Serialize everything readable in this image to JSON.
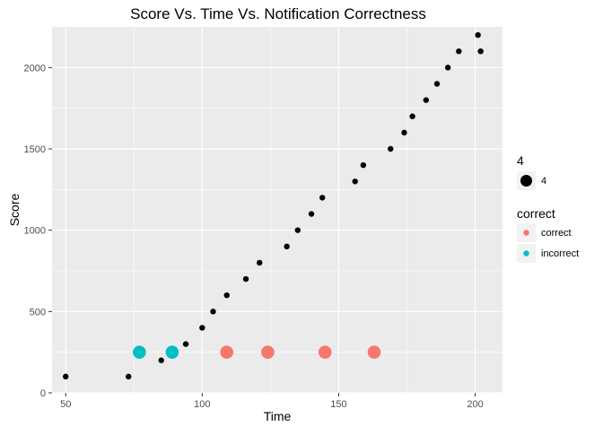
{
  "chart_data": {
    "type": "scatter",
    "title": "Score Vs. Time Vs. Notification Correctness",
    "xlabel": "Time",
    "ylabel": "Score",
    "xlim": [
      45,
      210
    ],
    "ylim": [
      0,
      2250
    ],
    "xticks": [
      50,
      100,
      150,
      200
    ],
    "yticks": [
      0,
      500,
      1000,
      1500,
      2000
    ],
    "grid": true,
    "legend_placement": "right",
    "background": "#EBEBEB",
    "gridline_color": "#FFFFFF",
    "series": [
      {
        "color": "#000000",
        "size": "small",
        "x": [
          50,
          73,
          85,
          94,
          100,
          104,
          109,
          116,
          121,
          131,
          135,
          140,
          144,
          156,
          159,
          169,
          174,
          177,
          182,
          186,
          190,
          194,
          201,
          202
        ],
        "y": [
          100,
          100,
          200,
          300,
          400,
          500,
          600,
          700,
          800,
          900,
          1000,
          1100,
          1200,
          1300,
          1400,
          1500,
          1600,
          1700,
          1800,
          1900,
          2000,
          2100,
          2200,
          2100
        ]
      },
      {
        "name": "correct",
        "color": "#F8766D",
        "size": "4",
        "x": [
          109,
          124,
          145,
          163
        ],
        "y": [
          250,
          250,
          250,
          250
        ]
      },
      {
        "name": "incorrect",
        "color": "#00BFC4",
        "size": "4",
        "x": [
          77,
          89
        ],
        "y": [
          250,
          250
        ]
      }
    ],
    "legends": [
      {
        "title": "4",
        "entries": [
          {
            "label": "4",
            "color": "#000000",
            "size": "large"
          }
        ]
      },
      {
        "title": "correct",
        "entries": [
          {
            "label": "correct",
            "color": "#F8766D",
            "size": "small"
          },
          {
            "label": "incorrect",
            "color": "#00BFC4",
            "size": "small"
          }
        ]
      }
    ]
  }
}
